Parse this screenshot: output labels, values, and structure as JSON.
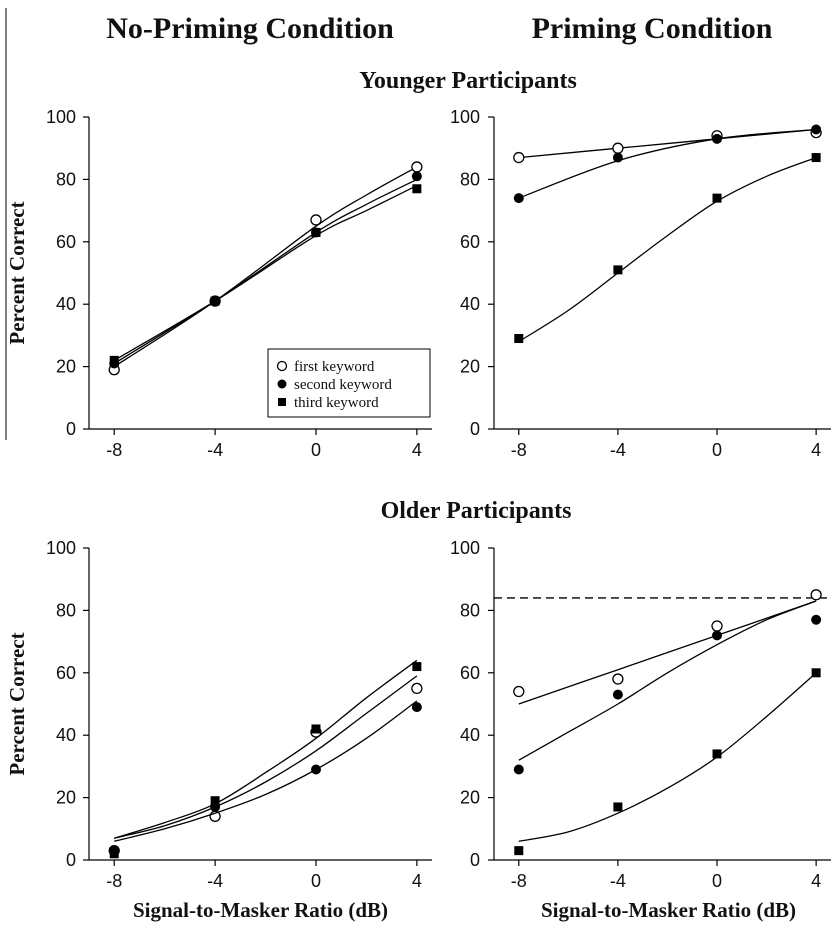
{
  "headings": {
    "col_left": "No-Priming Condition",
    "col_right": "Priming Condition",
    "row_top": "Younger Participants",
    "row_bottom": "Older Participants"
  },
  "legend": [
    "first keyword",
    "second keyword",
    "third keyword"
  ],
  "chart_data": [
    {
      "id": "younger-no-priming",
      "type": "scatter",
      "x": [
        -8,
        -4,
        0,
        4
      ],
      "xticks": [
        "-8",
        "-4",
        "0",
        "4"
      ],
      "yticks": [
        "0",
        "20",
        "40",
        "60",
        "80",
        "100"
      ],
      "xlim": [
        -9,
        4.6
      ],
      "ylim": [
        0,
        100
      ],
      "xlabel": "",
      "ylabel": "Percent Correct",
      "legend_position": "bottom-right",
      "series": [
        {
          "name": "first keyword",
          "marker": "open-circle",
          "values": [
            19,
            41,
            67,
            84
          ],
          "fit": [
            [
              -8,
              20
            ],
            [
              -4,
              41
            ],
            [
              0,
              65
            ],
            [
              2,
              75
            ],
            [
              4,
              84
            ]
          ]
        },
        {
          "name": "second keyword",
          "marker": "filled-circle",
          "values": [
            21,
            41,
            63,
            81
          ],
          "fit": [
            [
              -8,
              21
            ],
            [
              -4,
              41
            ],
            [
              0,
              63
            ],
            [
              2,
              72
            ],
            [
              4,
              80
            ]
          ]
        },
        {
          "name": "third keyword",
          "marker": "filled-square",
          "values": [
            22,
            41,
            63,
            77
          ],
          "fit": [
            [
              -8,
              22
            ],
            [
              -4,
              41
            ],
            [
              0,
              62
            ],
            [
              2,
              70
            ],
            [
              4,
              78
            ]
          ]
        }
      ]
    },
    {
      "id": "younger-priming",
      "type": "scatter",
      "x": [
        -8,
        -4,
        0,
        4
      ],
      "xticks": [
        "-8",
        "-4",
        "0",
        "4"
      ],
      "yticks": [
        "0",
        "20",
        "40",
        "60",
        "80",
        "100"
      ],
      "xlim": [
        -9,
        4.6
      ],
      "ylim": [
        0,
        100
      ],
      "xlabel": "",
      "ylabel": "",
      "series": [
        {
          "name": "first keyword",
          "marker": "open-circle",
          "values": [
            87,
            90,
            94,
            95
          ],
          "fit": [
            [
              -8,
              87
            ],
            [
              -4,
              90
            ],
            [
              0,
              93
            ],
            [
              4,
              96
            ]
          ]
        },
        {
          "name": "second keyword",
          "marker": "filled-circle",
          "values": [
            74,
            87,
            93,
            96
          ],
          "fit": [
            [
              -8,
              74
            ],
            [
              -4,
              86
            ],
            [
              0,
              93
            ],
            [
              4,
              96
            ]
          ]
        },
        {
          "name": "third keyword",
          "marker": "filled-square",
          "values": [
            29,
            51,
            74,
            87
          ],
          "fit": [
            [
              -8,
              28
            ],
            [
              -6,
              38
            ],
            [
              -4,
              50
            ],
            [
              -2,
              62
            ],
            [
              0,
              73
            ],
            [
              2,
              81
            ],
            [
              4,
              87
            ]
          ]
        }
      ]
    },
    {
      "id": "older-no-priming",
      "type": "scatter",
      "x": [
        -8,
        -4,
        0,
        4
      ],
      "xticks": [
        "-8",
        "-4",
        "0",
        "4"
      ],
      "yticks": [
        "0",
        "20",
        "40",
        "60",
        "80",
        "100"
      ],
      "xlim": [
        -9,
        4.6
      ],
      "ylim": [
        0,
        100
      ],
      "xlabel": "Signal-to-Masker Ratio (dB)",
      "ylabel": "Percent Correct",
      "series": [
        {
          "name": "first keyword",
          "marker": "open-circle",
          "values": [
            3,
            14,
            41,
            55
          ],
          "fit": [
            [
              -8,
              7
            ],
            [
              -6,
              11
            ],
            [
              -4,
              17
            ],
            [
              -2,
              25
            ],
            [
              0,
              35
            ],
            [
              2,
              47
            ],
            [
              4,
              59
            ]
          ]
        },
        {
          "name": "second keyword",
          "marker": "filled-circle",
          "values": [
            3,
            17,
            29,
            49
          ],
          "fit": [
            [
              -8,
              6
            ],
            [
              -6,
              10
            ],
            [
              -4,
              15
            ],
            [
              -2,
              21
            ],
            [
              0,
              29
            ],
            [
              2,
              39
            ],
            [
              4,
              51
            ]
          ]
        },
        {
          "name": "third keyword",
          "marker": "filled-square",
          "values": [
            2,
            19,
            42,
            62
          ],
          "fit": [
            [
              -8,
              7
            ],
            [
              -6,
              12
            ],
            [
              -4,
              18
            ],
            [
              -2,
              28
            ],
            [
              0,
              39
            ],
            [
              2,
              52
            ],
            [
              4,
              64
            ]
          ]
        }
      ]
    },
    {
      "id": "older-priming",
      "type": "scatter",
      "x": [
        -8,
        -4,
        0,
        4
      ],
      "xticks": [
        "-8",
        "-4",
        "0",
        "4"
      ],
      "yticks": [
        "0",
        "20",
        "40",
        "60",
        "80",
        "100"
      ],
      "xlim": [
        -9,
        4.6
      ],
      "ylim": [
        0,
        100
      ],
      "xlabel": "Signal-to-Masker Ratio (dB)",
      "ylabel": "",
      "reference_line": 84,
      "series": [
        {
          "name": "first keyword",
          "marker": "open-circle",
          "values": [
            54,
            58,
            75,
            85
          ],
          "fit": [
            [
              -8,
              50
            ],
            [
              -4,
              61
            ],
            [
              0,
              72
            ],
            [
              4,
              83
            ]
          ]
        },
        {
          "name": "second keyword",
          "marker": "filled-circle",
          "values": [
            29,
            53,
            72,
            77
          ],
          "fit": [
            [
              -8,
              32
            ],
            [
              -6,
              41
            ],
            [
              -4,
              50
            ],
            [
              -2,
              60
            ],
            [
              0,
              69
            ],
            [
              2,
              77
            ],
            [
              4,
              83
            ]
          ]
        },
        {
          "name": "third keyword",
          "marker": "filled-square",
          "values": [
            3,
            17,
            34,
            60
          ],
          "fit": [
            [
              -8,
              6
            ],
            [
              -6,
              9
            ],
            [
              -4,
              15
            ],
            [
              -2,
              23
            ],
            [
              0,
              33
            ],
            [
              2,
              46
            ],
            [
              4,
              60
            ]
          ]
        }
      ]
    }
  ]
}
